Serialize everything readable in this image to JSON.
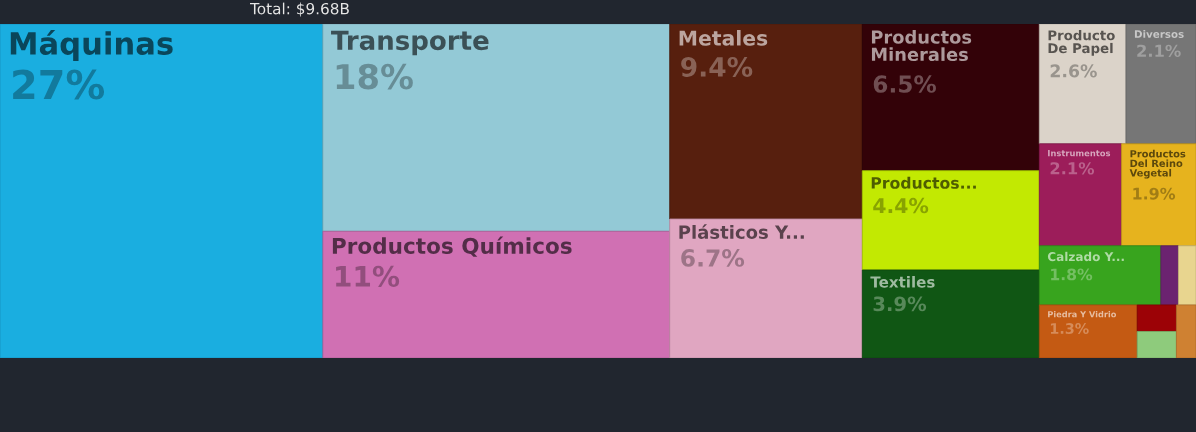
{
  "chart_data": {
    "type": "other",
    "title": "Total: $9.68B",
    "categories": [
      "Máquinas",
      "Transporte",
      "Productos Químicos",
      "Metales",
      "Plásticos Y...",
      "Productos\nMinerales",
      "Productos...",
      "Textiles",
      "Producto\nDe Papel",
      "Diversos",
      "Instrumentos",
      "Productos\nDel Reino\nVegetal",
      "Calzado Y...",
      "Piedra Y Vidrio",
      null,
      null,
      null,
      null,
      null
    ],
    "values": [
      27,
      18,
      11,
      9.4,
      6.7,
      6.5,
      4.4,
      3.9,
      2.6,
      2.1,
      2.1,
      1.9,
      1.8,
      1.3,
      null,
      null,
      null,
      null,
      null
    ],
    "value_labels": [
      "27%",
      "18%",
      "11%",
      "9.4%",
      "6.7%",
      "6.5%",
      "4.4%",
      "3.9%",
      "2.6%",
      "2.1%",
      "2.1%",
      "1.9%",
      "1.8%",
      "1.3%",
      null,
      null,
      null,
      null,
      null
    ],
    "colors": [
      "#1aaee0",
      "#93c9d6",
      "#d070b3",
      "#571f0e",
      "#e0a6c1",
      "#330208",
      "#c2e902",
      "#105614",
      "#dbd3c9",
      "#767676",
      "#9c1d5a",
      "#e6b31e",
      "#38a41e",
      "#c45a13",
      "#6b2370",
      "#e8d58f",
      "#9c0206",
      "#8ecb7c",
      "#cf8132"
    ]
  }
}
